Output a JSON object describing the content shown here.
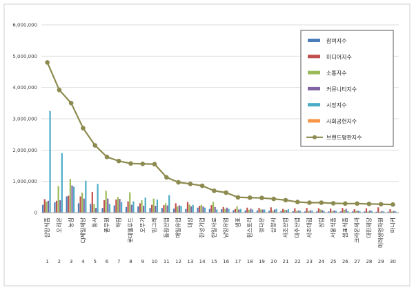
{
  "chart_data": {
    "type": "bar",
    "ylim": [
      0,
      6000000
    ],
    "yticks": [
      "0",
      "1,000,000",
      "2,000,000",
      "3,000,000",
      "4,000,000",
      "5,000,000",
      "6,000,000"
    ],
    "ytick_values": [
      0,
      1000000,
      2000000,
      3000000,
      4000000,
      5000000,
      6000000
    ],
    "index": [
      "1",
      "2",
      "3",
      "4",
      "5",
      "6",
      "7",
      "8",
      "9",
      "10",
      "11",
      "12",
      "13",
      "14",
      "15",
      "16",
      "17",
      "18",
      "19",
      "20",
      "21",
      "22",
      "23",
      "24",
      "25",
      "26",
      "27",
      "28",
      "29",
      "30"
    ],
    "categories": [
      "삼양식품",
      "오리온",
      "농심",
      "CJ제일제당",
      "동서",
      "풀무원",
      "하림",
      "롯데웰푸드",
      "오뚜기",
      "빙그레",
      "동원산업",
      "매일유업",
      "대상",
      "한성기업",
      "한일사료",
      "남양유업",
      "샘표",
      "팜스토리",
      "정다운",
      "삼양사",
      "사조산업",
      "대주산업",
      "사조대림",
      "삼립",
      "서울식품",
      "샘표식품",
      "크라운제과",
      "대한제당",
      "미래생명자원",
      "마니커"
    ],
    "colors": {
      "participation": "#4a7ebb",
      "media": "#c0504d",
      "communication": "#9bbb59",
      "community": "#8064a2",
      "market": "#4bacc6",
      "social": "#f79646",
      "brand": "#8c8a4e"
    },
    "series": [
      {
        "key": "participation",
        "name": "참여지수",
        "values": [
          250000,
          330000,
          520000,
          300000,
          280000,
          150000,
          230000,
          180000,
          200000,
          150000,
          150000,
          130000,
          120000,
          160000,
          120000,
          110000,
          80000,
          70000,
          70000,
          60000,
          50000,
          50000,
          40000,
          40000,
          40000,
          40000,
          40000,
          40000,
          30000,
          30000
        ]
      },
      {
        "key": "media",
        "name": "미디어지수",
        "values": [
          430000,
          380000,
          540000,
          520000,
          660000,
          400000,
          420000,
          360000,
          300000,
          250000,
          240000,
          300000,
          340000,
          220000,
          240000,
          180000,
          120000,
          160000,
          150000,
          170000,
          120000,
          140000,
          150000,
          140000,
          130000,
          150000,
          110000,
          140000,
          170000,
          110000
        ]
      },
      {
        "key": "communication",
        "name": "소통지수",
        "values": [
          350000,
          850000,
          1080000,
          640000,
          280000,
          700000,
          500000,
          650000,
          400000,
          450000,
          300000,
          200000,
          260000,
          250000,
          350000,
          120000,
          200000,
          90000,
          100000,
          60000,
          90000,
          50000,
          60000,
          100000,
          50000,
          90000,
          60000,
          40000,
          30000,
          40000
        ]
      },
      {
        "key": "community",
        "name": "커뮤니티지수",
        "values": [
          380000,
          400000,
          870000,
          450000,
          150000,
          450000,
          440000,
          250000,
          220000,
          220000,
          230000,
          230000,
          200000,
          200000,
          180000,
          160000,
          100000,
          130000,
          100000,
          100000,
          80000,
          70000,
          70000,
          80000,
          70000,
          120000,
          60000,
          70000,
          50000,
          60000
        ]
      },
      {
        "key": "market",
        "name": "시장지수",
        "values": [
          3250000,
          1900000,
          830000,
          1020000,
          920000,
          280000,
          340000,
          360000,
          480000,
          420000,
          560000,
          220000,
          250000,
          160000,
          100000,
          120000,
          120000,
          100000,
          100000,
          120000,
          110000,
          60000,
          70000,
          50000,
          60000,
          50000,
          50000,
          60000,
          40000,
          40000
        ]
      },
      {
        "key": "social",
        "name": "사회공헌지수",
        "values": [
          10000,
          10000,
          10000,
          10000,
          10000,
          10000,
          10000,
          10000,
          10000,
          10000,
          10000,
          10000,
          10000,
          10000,
          10000,
          10000,
          10000,
          10000,
          10000,
          10000,
          10000,
          10000,
          10000,
          10000,
          10000,
          10000,
          10000,
          10000,
          10000,
          10000
        ]
      }
    ],
    "line_series": {
      "key": "brand",
      "name": "브랜드평판지수",
      "values": [
        4800000,
        3920000,
        3500000,
        2700000,
        2150000,
        1780000,
        1650000,
        1570000,
        1560000,
        1550000,
        1130000,
        970000,
        920000,
        860000,
        700000,
        640000,
        490000,
        480000,
        470000,
        440000,
        400000,
        340000,
        320000,
        320000,
        300000,
        290000,
        290000,
        280000,
        270000,
        260000
      ]
    },
    "legend_position": "top-right",
    "grid": true
  }
}
